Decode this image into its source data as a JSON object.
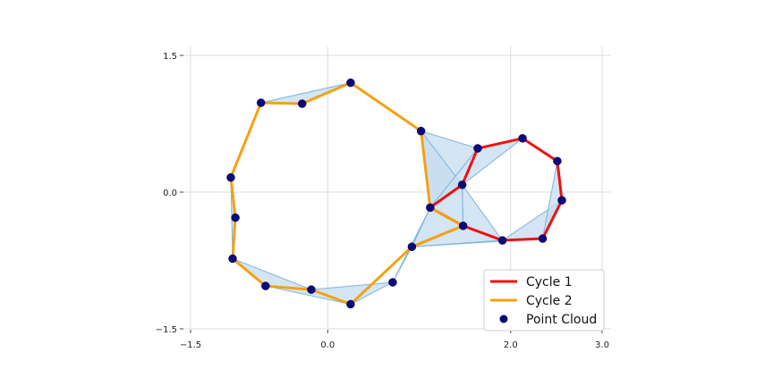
{
  "chart_data": {
    "type": "scatter",
    "title": "",
    "xlabel": "",
    "ylabel": "",
    "xlim": [
      -1.5,
      3.0
    ],
    "ylim": [
      -1.5,
      1.5
    ],
    "x_ticks": [
      -1.5,
      0.0,
      2.0,
      3.0
    ],
    "x_tick_labels": [
      "−1.5",
      "0.0",
      "2.0",
      "3.0"
    ],
    "y_ticks": [
      1.5,
      0.0,
      -1.5
    ],
    "y_tick_labels": [
      "1.5",
      "0.0",
      "−1.5"
    ],
    "grid": true,
    "legend_position": "bottom-right",
    "points": [
      {
        "id": "p0",
        "x": 0.25,
        "y": 1.2
      },
      {
        "id": "p1",
        "x": -0.73,
        "y": 0.98
      },
      {
        "id": "p2",
        "x": -0.28,
        "y": 0.97
      },
      {
        "id": "p3",
        "x": 1.02,
        "y": 0.67
      },
      {
        "id": "p4",
        "x": 1.64,
        "y": 0.48
      },
      {
        "id": "p5",
        "x": 2.13,
        "y": 0.59
      },
      {
        "id": "p6",
        "x": 2.51,
        "y": 0.34
      },
      {
        "id": "p7",
        "x": 2.56,
        "y": -0.09
      },
      {
        "id": "p8",
        "x": 1.47,
        "y": 0.08
      },
      {
        "id": "p9",
        "x": 1.12,
        "y": -0.17
      },
      {
        "id": "p10",
        "x": -1.06,
        "y": 0.16
      },
      {
        "id": "p11",
        "x": -1.01,
        "y": -0.28
      },
      {
        "id": "p12",
        "x": 1.48,
        "y": -0.37
      },
      {
        "id": "p13",
        "x": 1.91,
        "y": -0.53
      },
      {
        "id": "p14",
        "x": 2.35,
        "y": -0.51
      },
      {
        "id": "p15",
        "x": 0.92,
        "y": -0.6
      },
      {
        "id": "p16",
        "x": -1.04,
        "y": -0.73
      },
      {
        "id": "p17",
        "x": -0.68,
        "y": -1.03
      },
      {
        "id": "p18",
        "x": -0.18,
        "y": -1.07
      },
      {
        "id": "p19",
        "x": 0.71,
        "y": -0.99
      },
      {
        "id": "p20",
        "x": 0.25,
        "y": -1.23
      }
    ],
    "filled_triangles": [
      [
        "p1",
        "p2",
        "p0"
      ],
      [
        "p3",
        "p4",
        "p9"
      ],
      [
        "p3",
        "p8",
        "p9"
      ],
      [
        "p4",
        "p8",
        "p9"
      ],
      [
        "p4",
        "p5",
        "p8"
      ],
      [
        "p8",
        "p9",
        "p12"
      ],
      [
        "p9",
        "p12",
        "p15"
      ],
      [
        "p9",
        "p15",
        "p19"
      ],
      [
        "p12",
        "p13",
        "p15"
      ],
      [
        "p8",
        "p12",
        "p13"
      ],
      [
        "p13",
        "p14",
        "p7"
      ],
      [
        "p7",
        "p6",
        "p14"
      ],
      [
        "p15",
        "p13",
        "p14"
      ],
      [
        "p10",
        "p11",
        "p16"
      ],
      [
        "p16",
        "p17",
        "p18"
      ],
      [
        "p18",
        "p19",
        "p20"
      ],
      [
        "p18",
        "p17",
        "p20"
      ]
    ],
    "series": [
      {
        "name": "Cycle 1",
        "type": "line",
        "color": "#ee1111",
        "path": [
          "p4",
          "p5",
          "p6",
          "p7",
          "p14",
          "p13",
          "p12",
          "p9",
          "p8",
          "p4"
        ]
      },
      {
        "name": "Cycle 2",
        "type": "line",
        "color": "#f5a110",
        "path": [
          "p0",
          "p3",
          "p9",
          "p12",
          "p15",
          "p20",
          "p18",
          "p17",
          "p16",
          "p11",
          "p10",
          "p1",
          "p2",
          "p0"
        ]
      },
      {
        "name": "Point Cloud",
        "type": "scatter",
        "color": "#0a0a7a"
      }
    ],
    "fill_color": "#c6dcf0",
    "edge_color": "#7eb5db"
  }
}
